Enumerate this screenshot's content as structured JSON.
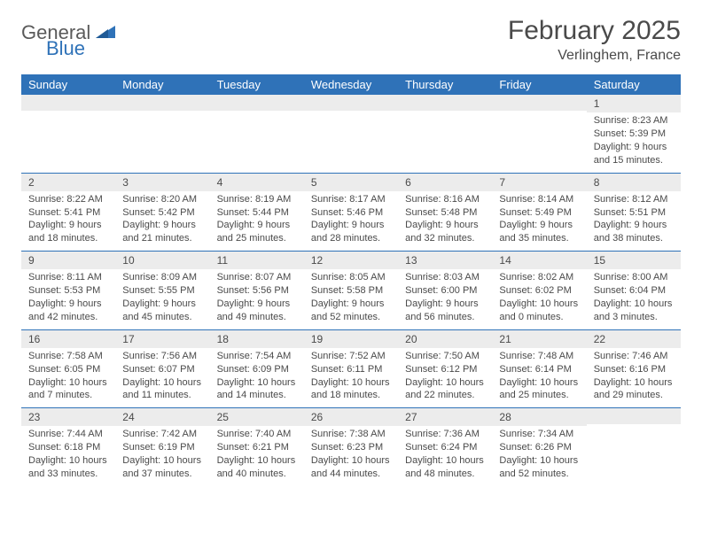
{
  "logo": {
    "text1": "General",
    "text2": "Blue"
  },
  "title": "February 2025",
  "location": "Verlinghem, France",
  "colors": {
    "header_bg": "#2f72b8",
    "header_text": "#ffffff",
    "daynum_bg": "#ececec",
    "text": "#4a4a4a",
    "rule": "#2f72b8"
  },
  "day_names": [
    "Sunday",
    "Monday",
    "Tuesday",
    "Wednesday",
    "Thursday",
    "Friday",
    "Saturday"
  ],
  "weeks": [
    [
      {
        "n": "",
        "sunrise": "",
        "sunset": "",
        "daylight": ""
      },
      {
        "n": "",
        "sunrise": "",
        "sunset": "",
        "daylight": ""
      },
      {
        "n": "",
        "sunrise": "",
        "sunset": "",
        "daylight": ""
      },
      {
        "n": "",
        "sunrise": "",
        "sunset": "",
        "daylight": ""
      },
      {
        "n": "",
        "sunrise": "",
        "sunset": "",
        "daylight": ""
      },
      {
        "n": "",
        "sunrise": "",
        "sunset": "",
        "daylight": ""
      },
      {
        "n": "1",
        "sunrise": "Sunrise: 8:23 AM",
        "sunset": "Sunset: 5:39 PM",
        "daylight": "Daylight: 9 hours and 15 minutes."
      }
    ],
    [
      {
        "n": "2",
        "sunrise": "Sunrise: 8:22 AM",
        "sunset": "Sunset: 5:41 PM",
        "daylight": "Daylight: 9 hours and 18 minutes."
      },
      {
        "n": "3",
        "sunrise": "Sunrise: 8:20 AM",
        "sunset": "Sunset: 5:42 PM",
        "daylight": "Daylight: 9 hours and 21 minutes."
      },
      {
        "n": "4",
        "sunrise": "Sunrise: 8:19 AM",
        "sunset": "Sunset: 5:44 PM",
        "daylight": "Daylight: 9 hours and 25 minutes."
      },
      {
        "n": "5",
        "sunrise": "Sunrise: 8:17 AM",
        "sunset": "Sunset: 5:46 PM",
        "daylight": "Daylight: 9 hours and 28 minutes."
      },
      {
        "n": "6",
        "sunrise": "Sunrise: 8:16 AM",
        "sunset": "Sunset: 5:48 PM",
        "daylight": "Daylight: 9 hours and 32 minutes."
      },
      {
        "n": "7",
        "sunrise": "Sunrise: 8:14 AM",
        "sunset": "Sunset: 5:49 PM",
        "daylight": "Daylight: 9 hours and 35 minutes."
      },
      {
        "n": "8",
        "sunrise": "Sunrise: 8:12 AM",
        "sunset": "Sunset: 5:51 PM",
        "daylight": "Daylight: 9 hours and 38 minutes."
      }
    ],
    [
      {
        "n": "9",
        "sunrise": "Sunrise: 8:11 AM",
        "sunset": "Sunset: 5:53 PM",
        "daylight": "Daylight: 9 hours and 42 minutes."
      },
      {
        "n": "10",
        "sunrise": "Sunrise: 8:09 AM",
        "sunset": "Sunset: 5:55 PM",
        "daylight": "Daylight: 9 hours and 45 minutes."
      },
      {
        "n": "11",
        "sunrise": "Sunrise: 8:07 AM",
        "sunset": "Sunset: 5:56 PM",
        "daylight": "Daylight: 9 hours and 49 minutes."
      },
      {
        "n": "12",
        "sunrise": "Sunrise: 8:05 AM",
        "sunset": "Sunset: 5:58 PM",
        "daylight": "Daylight: 9 hours and 52 minutes."
      },
      {
        "n": "13",
        "sunrise": "Sunrise: 8:03 AM",
        "sunset": "Sunset: 6:00 PM",
        "daylight": "Daylight: 9 hours and 56 minutes."
      },
      {
        "n": "14",
        "sunrise": "Sunrise: 8:02 AM",
        "sunset": "Sunset: 6:02 PM",
        "daylight": "Daylight: 10 hours and 0 minutes."
      },
      {
        "n": "15",
        "sunrise": "Sunrise: 8:00 AM",
        "sunset": "Sunset: 6:04 PM",
        "daylight": "Daylight: 10 hours and 3 minutes."
      }
    ],
    [
      {
        "n": "16",
        "sunrise": "Sunrise: 7:58 AM",
        "sunset": "Sunset: 6:05 PM",
        "daylight": "Daylight: 10 hours and 7 minutes."
      },
      {
        "n": "17",
        "sunrise": "Sunrise: 7:56 AM",
        "sunset": "Sunset: 6:07 PM",
        "daylight": "Daylight: 10 hours and 11 minutes."
      },
      {
        "n": "18",
        "sunrise": "Sunrise: 7:54 AM",
        "sunset": "Sunset: 6:09 PM",
        "daylight": "Daylight: 10 hours and 14 minutes."
      },
      {
        "n": "19",
        "sunrise": "Sunrise: 7:52 AM",
        "sunset": "Sunset: 6:11 PM",
        "daylight": "Daylight: 10 hours and 18 minutes."
      },
      {
        "n": "20",
        "sunrise": "Sunrise: 7:50 AM",
        "sunset": "Sunset: 6:12 PM",
        "daylight": "Daylight: 10 hours and 22 minutes."
      },
      {
        "n": "21",
        "sunrise": "Sunrise: 7:48 AM",
        "sunset": "Sunset: 6:14 PM",
        "daylight": "Daylight: 10 hours and 25 minutes."
      },
      {
        "n": "22",
        "sunrise": "Sunrise: 7:46 AM",
        "sunset": "Sunset: 6:16 PM",
        "daylight": "Daylight: 10 hours and 29 minutes."
      }
    ],
    [
      {
        "n": "23",
        "sunrise": "Sunrise: 7:44 AM",
        "sunset": "Sunset: 6:18 PM",
        "daylight": "Daylight: 10 hours and 33 minutes."
      },
      {
        "n": "24",
        "sunrise": "Sunrise: 7:42 AM",
        "sunset": "Sunset: 6:19 PM",
        "daylight": "Daylight: 10 hours and 37 minutes."
      },
      {
        "n": "25",
        "sunrise": "Sunrise: 7:40 AM",
        "sunset": "Sunset: 6:21 PM",
        "daylight": "Daylight: 10 hours and 40 minutes."
      },
      {
        "n": "26",
        "sunrise": "Sunrise: 7:38 AM",
        "sunset": "Sunset: 6:23 PM",
        "daylight": "Daylight: 10 hours and 44 minutes."
      },
      {
        "n": "27",
        "sunrise": "Sunrise: 7:36 AM",
        "sunset": "Sunset: 6:24 PM",
        "daylight": "Daylight: 10 hours and 48 minutes."
      },
      {
        "n": "28",
        "sunrise": "Sunrise: 7:34 AM",
        "sunset": "Sunset: 6:26 PM",
        "daylight": "Daylight: 10 hours and 52 minutes."
      },
      {
        "n": "",
        "sunrise": "",
        "sunset": "",
        "daylight": ""
      }
    ]
  ]
}
